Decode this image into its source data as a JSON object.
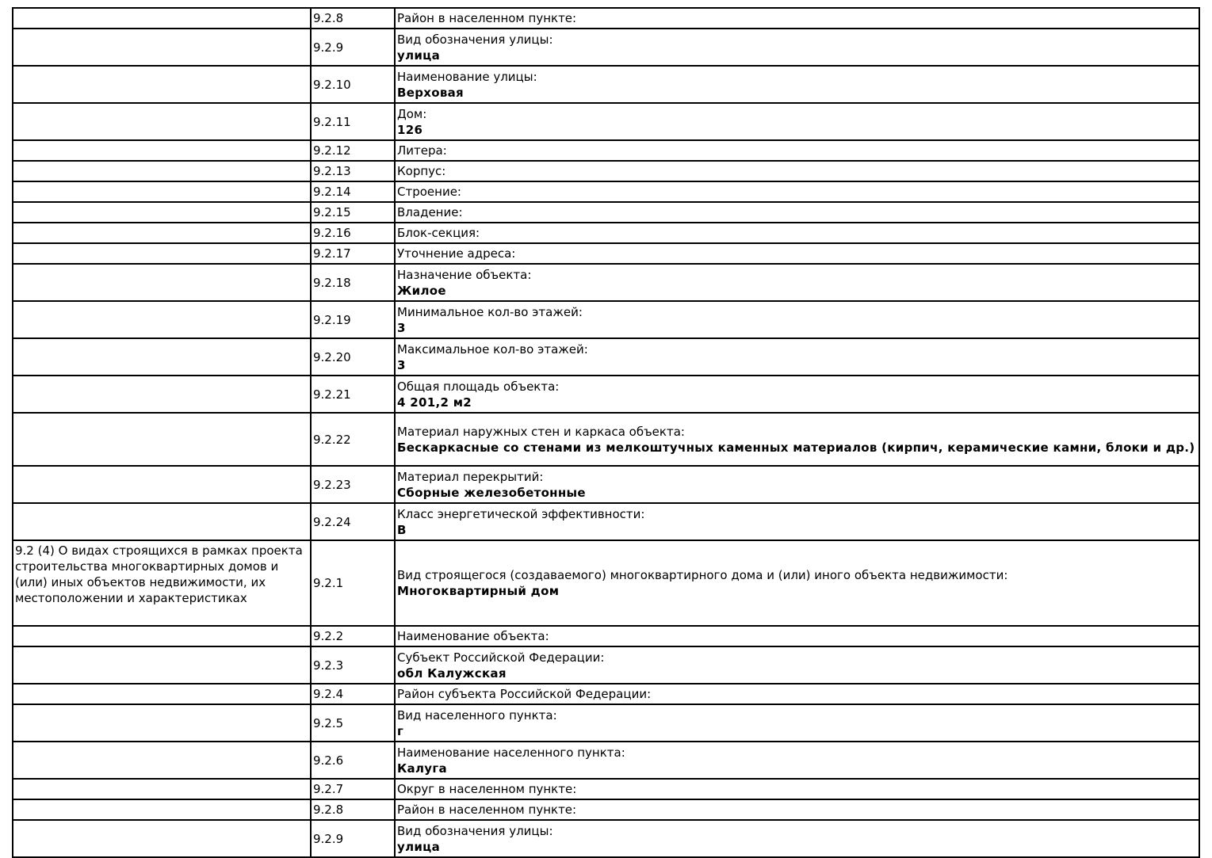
{
  "rows": [
    {
      "num": "9.2.8",
      "label": "Район в населенном пункте:",
      "value": ""
    },
    {
      "num": "9.2.9",
      "label": "Вид обозначения улицы:",
      "value": "улица"
    },
    {
      "num": "9.2.10",
      "label": "Наименование улицы:",
      "value": "Верховая"
    },
    {
      "num": "9.2.11",
      "label": "Дом:",
      "value": "126"
    },
    {
      "num": "9.2.12",
      "label": "Литера:",
      "value": ""
    },
    {
      "num": "9.2.13",
      "label": "Корпус:",
      "value": ""
    },
    {
      "num": "9.2.14",
      "label": "Строение:",
      "value": ""
    },
    {
      "num": "9.2.15",
      "label": "Владение:",
      "value": ""
    },
    {
      "num": "9.2.16",
      "label": "Блок-секция:",
      "value": ""
    },
    {
      "num": "9.2.17",
      "label": "Уточнение адреса:",
      "value": ""
    },
    {
      "num": "9.2.18",
      "label": "Назначение объекта:",
      "value": "Жилое"
    },
    {
      "num": "9.2.19",
      "label": "Минимальное кол-во этажей:",
      "value": "3"
    },
    {
      "num": "9.2.20",
      "label": "Максимальное кол-во этажей:",
      "value": "3"
    },
    {
      "num": "9.2.21",
      "label": "Общая площадь объекта:",
      "value": "4 201,2 м2"
    },
    {
      "num": "9.2.22",
      "label": "Материал наружных стен и каркаса объекта:",
      "value": "Бескаркасные со стенами из мелкоштучных каменных материалов (кирпич, керамические камни, блоки и др.)"
    },
    {
      "num": "9.2.23",
      "label": "Материал перекрытий:",
      "value": "Сборные железобетонные"
    },
    {
      "num": "9.2.24",
      "label": "Класс энергетической эффективности:",
      "value": "В"
    },
    {
      "section": "9.2 (4) О видах строящихся в рамках проекта строительства многоквартирных домов и (или) иных объектов недвижимости, их местоположении и характеристиках",
      "num": "9.2.1",
      "label": "Вид строящегося (создаваемого) многоквартирного дома и (или) иного объекта недвижимости:",
      "value": "Многоквартирный дом"
    },
    {
      "num": "9.2.2",
      "label": "Наименование объекта:",
      "value": ""
    },
    {
      "num": "9.2.3",
      "label": "Субъект Российской Федерации:",
      "value": "обл Калужская"
    },
    {
      "num": "9.2.4",
      "label": "Район субъекта Российской Федерации:",
      "value": ""
    },
    {
      "num": "9.2.5",
      "label": "Вид населенного пункта:",
      "value": "г"
    },
    {
      "num": "9.2.6",
      "label": "Наименование населенного пункта:",
      "value": "Калуга"
    },
    {
      "num": "9.2.7",
      "label": "Округ в населенном пункте:",
      "value": ""
    },
    {
      "num": "9.2.8",
      "label": "Район в населенном пункте:",
      "value": ""
    },
    {
      "num": "9.2.9",
      "label": "Вид обозначения улицы:",
      "value": "улица"
    }
  ]
}
